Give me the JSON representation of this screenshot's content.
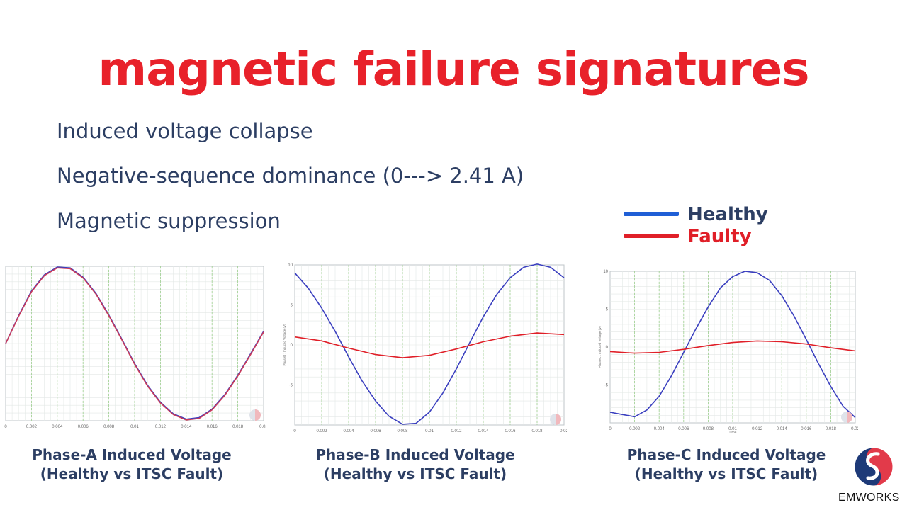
{
  "slide": {
    "title": "magnetic failure signatures",
    "bullets": [
      "Induced voltage collapse",
      "Negative-sequence dominance (0---> 2.41 A)",
      "Magnetic suppression"
    ],
    "brand": "EMWORKS"
  },
  "legend": {
    "healthy": {
      "label": "Healthy",
      "color": "#1f5fd6"
    },
    "faulty": {
      "label": "Faulty",
      "color": "#e01f28"
    }
  },
  "chart_data": [
    {
      "type": "line",
      "caption": "Phase-A Induced Voltage (Healthy vs ITSC Fault)",
      "xlabel": "",
      "ylabel": "",
      "xlim": [
        0,
        0.02
      ],
      "ylim": [
        -10,
        10
      ],
      "xticks": [
        "0",
        "0.002",
        "0.004",
        "0.006",
        "0.008",
        "0.01",
        "0.012",
        "0.014",
        "0.016",
        "0.018",
        "0.02"
      ],
      "yticks": [],
      "series": [
        {
          "role": "healthy",
          "color": "#3a3fbf",
          "x": [
            0,
            0.001,
            0.002,
            0.003,
            0.004,
            0.005,
            0.006,
            0.007,
            0.008,
            0.009,
            0.01,
            0.011,
            0.012,
            0.013,
            0.014,
            0.015,
            0.016,
            0.017,
            0.018,
            0.019,
            0.02
          ],
          "y": [
            0,
            3.6,
            6.8,
            8.9,
            9.9,
            9.8,
            8.6,
            6.5,
            3.7,
            0.6,
            -2.6,
            -5.4,
            -7.6,
            -9.1,
            -9.8,
            -9.6,
            -8.5,
            -6.6,
            -4.1,
            -1.3,
            1.6
          ]
        },
        {
          "role": "faulty",
          "color": "#c93a5a",
          "x": [
            0,
            0.001,
            0.002,
            0.003,
            0.004,
            0.005,
            0.006,
            0.007,
            0.008,
            0.009,
            0.01,
            0.011,
            0.012,
            0.013,
            0.014,
            0.015,
            0.016,
            0.017,
            0.018,
            0.019,
            0.02
          ],
          "y": [
            0,
            3.5,
            6.7,
            8.8,
            9.8,
            9.7,
            8.5,
            6.4,
            3.6,
            0.5,
            -2.7,
            -5.5,
            -7.7,
            -9.2,
            -9.9,
            -9.7,
            -8.6,
            -6.7,
            -4.2,
            -1.4,
            1.5
          ]
        }
      ]
    },
    {
      "type": "line",
      "caption": "Phase-B Induced Voltage (Healthy vs ITSC Fault)",
      "xlabel": "",
      "ylabel": "PhaseB : Induced Voltage (V)",
      "xlim": [
        0,
        0.02
      ],
      "ylim": [
        -10,
        10
      ],
      "xticks": [
        "0",
        "0.002",
        "0.004",
        "0.006",
        "0.008",
        "0.01",
        "0.012",
        "0.014",
        "0.016",
        "0.018",
        "0.02"
      ],
      "yticks": [
        "10",
        "5",
        "0",
        "-5"
      ],
      "series": [
        {
          "role": "healthy",
          "color": "#3a3fbf",
          "x": [
            0,
            0.001,
            0.002,
            0.003,
            0.004,
            0.005,
            0.006,
            0.007,
            0.008,
            0.009,
            0.01,
            0.011,
            0.012,
            0.013,
            0.014,
            0.015,
            0.016,
            0.017,
            0.018,
            0.019,
            0.02
          ],
          "y": [
            9,
            7.1,
            4.6,
            1.7,
            -1.5,
            -4.5,
            -7,
            -8.9,
            -9.9,
            -9.8,
            -8.4,
            -6,
            -3,
            0.3,
            3.5,
            6.3,
            8.4,
            9.7,
            10.1,
            9.7,
            8.4
          ]
        },
        {
          "role": "faulty",
          "color": "#e01f28",
          "x": [
            0,
            0.002,
            0.004,
            0.006,
            0.008,
            0.01,
            0.012,
            0.014,
            0.016,
            0.018,
            0.02
          ],
          "y": [
            1,
            0.5,
            -0.4,
            -1.2,
            -1.6,
            -1.3,
            -0.5,
            0.4,
            1.1,
            1.5,
            1.3
          ]
        }
      ]
    },
    {
      "type": "line",
      "caption": "Phase-C Induced Voltage (Healthy vs ITSC Fault)",
      "xlabel": "Time",
      "ylabel": "PhaseC : Induced Voltage (V)",
      "xlim": [
        0,
        0.02
      ],
      "ylim": [
        -10,
        10
      ],
      "xticks": [
        "0",
        "0.002",
        "0.004",
        "0.006",
        "0.008",
        "0.01",
        "0.012",
        "0.014",
        "0.016",
        "0.018",
        "0.02"
      ],
      "yticks": [
        "10",
        "5",
        "0",
        "-5"
      ],
      "series": [
        {
          "role": "healthy",
          "color": "#3a3fbf",
          "x": [
            0,
            0.001,
            0.002,
            0.003,
            0.004,
            0.005,
            0.006,
            0.007,
            0.008,
            0.009,
            0.01,
            0.011,
            0.012,
            0.013,
            0.014,
            0.015,
            0.016,
            0.017,
            0.018,
            0.019,
            0.02
          ],
          "y": [
            -8.6,
            -8.9,
            -9.2,
            -8.3,
            -6.5,
            -3.8,
            -0.7,
            2.4,
            5.3,
            7.8,
            9.3,
            10,
            9.8,
            8.8,
            6.8,
            4.1,
            1,
            -2.2,
            -5.2,
            -7.8,
            -9.3
          ]
        },
        {
          "role": "faulty",
          "color": "#e01f28",
          "x": [
            0,
            0.002,
            0.004,
            0.006,
            0.008,
            0.01,
            0.012,
            0.014,
            0.016,
            0.018,
            0.02
          ],
          "y": [
            -0.6,
            -0.8,
            -0.7,
            -0.3,
            0.2,
            0.6,
            0.8,
            0.7,
            0.4,
            -0.1,
            -0.5
          ]
        }
      ]
    }
  ]
}
